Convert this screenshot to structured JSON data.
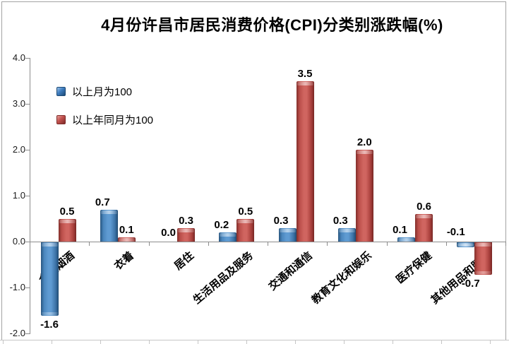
{
  "chart_data": {
    "type": "bar",
    "title": "4月份许昌市居民消费价格(CPI)分类别涨跌幅(%)",
    "categories": [
      "食品烟酒",
      "衣着",
      "居住",
      "生活用品及服务",
      "交通和通信",
      "教育文化和娱乐",
      "医疗保健",
      "其他用品和服务"
    ],
    "series": [
      {
        "name": "以上月为100",
        "key": "mom",
        "color": "#3E7CBF",
        "values": [
          -1.6,
          0.7,
          0.0,
          0.2,
          0.3,
          0.3,
          0.1,
          -0.1
        ]
      },
      {
        "name": "以上年同月为100",
        "key": "yoy",
        "color": "#C0504D",
        "values": [
          0.5,
          0.1,
          0.3,
          0.5,
          3.5,
          2.0,
          0.6,
          -0.7
        ]
      }
    ],
    "ylabel": "",
    "xlabel": "",
    "ylim": [
      -2.0,
      4.0
    ],
    "ytick_interval": 1.0,
    "ytick_labels": [
      "4.0",
      "3.0",
      "2.0",
      "1.0",
      "0.0",
      "-1.0",
      "-2.0"
    ],
    "grid": false,
    "legend_position": "inside-upper-left",
    "data_label_format": "0.0"
  },
  "colors": {
    "series_mom": "#3E7CBF",
    "series_yoy": "#C0504D",
    "axis": "#8c8c8c",
    "worksheet_gridline": "#c6c6c6",
    "background": "#ffffff"
  }
}
